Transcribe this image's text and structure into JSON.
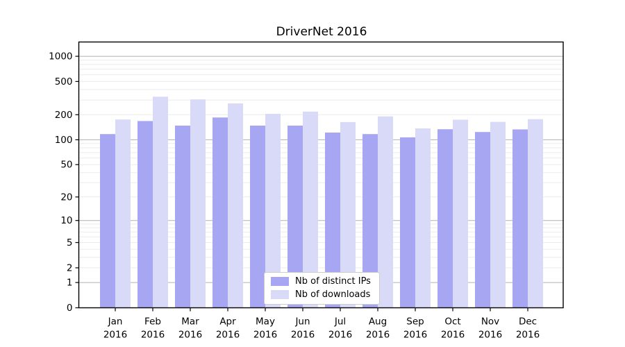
{
  "chart_data": {
    "type": "bar",
    "title": "DriverNet 2016",
    "categories": [
      "Jan 2016",
      "Feb 2016",
      "Mar 2016",
      "Apr 2016",
      "May 2016",
      "Jun 2016",
      "Jul 2016",
      "Aug 2016",
      "Sep 2016",
      "Oct 2016",
      "Nov 2016",
      "Dec 2016"
    ],
    "series": [
      {
        "name": "Nb of distinct IPs",
        "color": "#a6a6f2",
        "values": [
          117,
          168,
          148,
          185,
          148,
          148,
          122,
          117,
          107,
          134,
          124,
          133
        ]
      },
      {
        "name": "Nb of downloads",
        "color": "#d9d9f8",
        "values": [
          175,
          329,
          305,
          273,
          205,
          218,
          163,
          191,
          137,
          174,
          164,
          177
        ]
      }
    ],
    "xlabel": "",
    "ylabel": "",
    "yscale": "log1p",
    "yticks": [
      0,
      1,
      2,
      5,
      10,
      20,
      50,
      100,
      200,
      500,
      1000
    ],
    "ylim": [
      0,
      1480
    ],
    "grid": {
      "major_color": "#b0b0b0",
      "minor_color": "#ebebeb",
      "major_at": [
        1,
        10,
        100,
        1000
      ]
    },
    "legend": {
      "position": "lower-center"
    },
    "axis_color": "#000000",
    "text_color": "#000000",
    "background": "#ffffff"
  }
}
